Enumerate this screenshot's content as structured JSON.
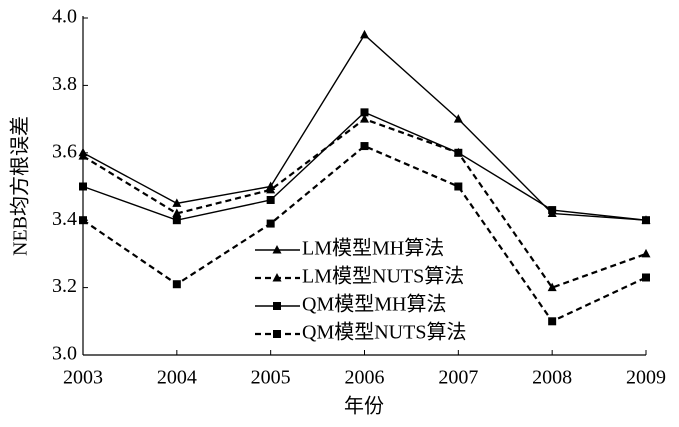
{
  "chart_data": {
    "type": "line",
    "x_label": "年份",
    "y_label": "NEB均方根误差",
    "x": [
      2003,
      2004,
      2005,
      2006,
      2007,
      2008,
      2009
    ],
    "xlim": [
      2003,
      2009
    ],
    "xticks": [
      2003,
      2004,
      2005,
      2006,
      2007,
      2008,
      2009
    ],
    "ylim": [
      3.0,
      4.0
    ],
    "yticks": [
      {
        "value": 3.0,
        "label": "3.0"
      },
      3.2,
      3.4,
      3.6,
      3.8,
      {
        "value": 4.0,
        "label": "4.0"
      }
    ],
    "legend": "bottom-center",
    "series": [
      {
        "name": "LM模型MH算法",
        "color": "#000000",
        "dashed": false,
        "marker": "triangle",
        "values": [
          3.6,
          3.45,
          3.5,
          3.95,
          3.7,
          3.42,
          3.4
        ]
      },
      {
        "name": "LM模型NUTS算法",
        "color": "#000000",
        "dashed": true,
        "marker": "triangle",
        "values": [
          3.59,
          3.42,
          3.49,
          3.7,
          3.6,
          3.2,
          3.3
        ]
      },
      {
        "name": "QM模型MH算法",
        "color": "#000000",
        "dashed": false,
        "marker": "square",
        "values": [
          3.5,
          3.4,
          3.46,
          3.72,
          3.6,
          3.43,
          3.4
        ]
      },
      {
        "name": "QM模型NUTS算法",
        "color": "#000000",
        "dashed": true,
        "marker": "square",
        "values": [
          3.4,
          3.21,
          3.39,
          3.62,
          3.5,
          3.1,
          3.23
        ]
      }
    ]
  }
}
